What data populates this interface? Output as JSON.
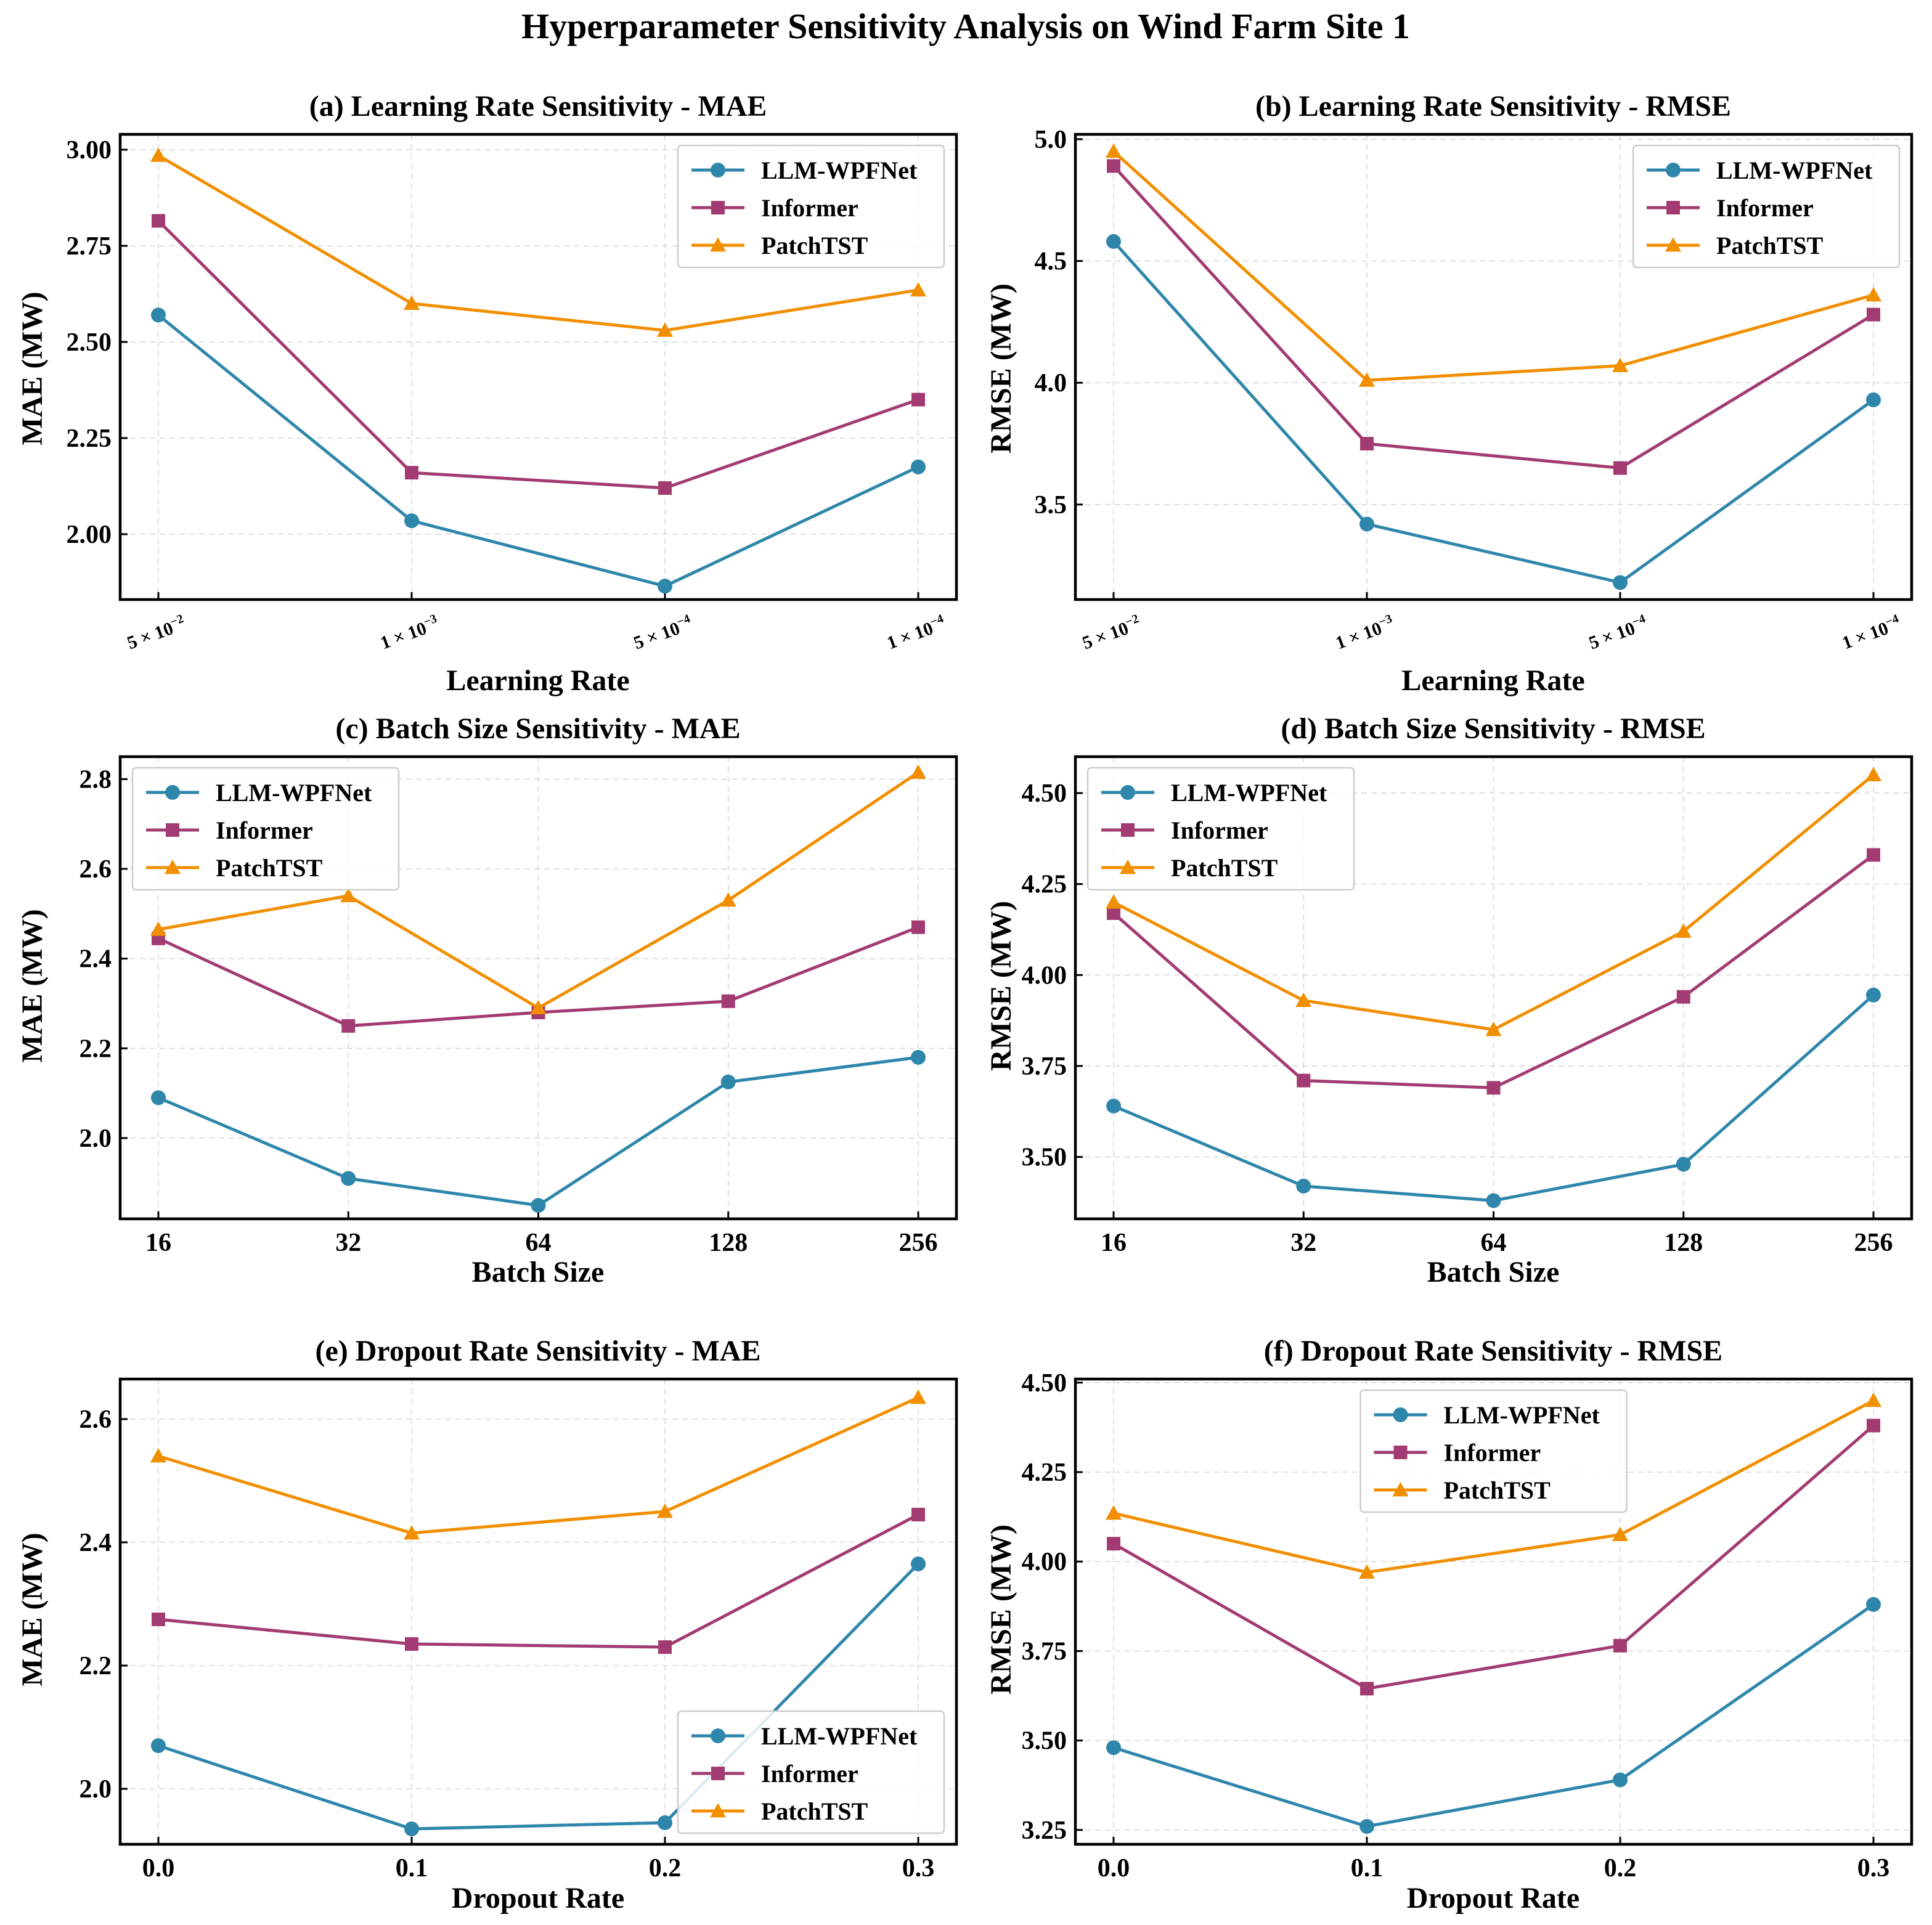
{
  "figure_title": "Hyperparameter Sensitivity Analysis on Wind Farm Site 1",
  "colors": {
    "LLM-WPFNet": "#2E86AB",
    "Informer": "#A23B72",
    "PatchTST": "#F18F01"
  },
  "chart_data": [
    {
      "type": "line",
      "title": "(a) Learning Rate Sensitivity - MAE",
      "xlabel": "Learning Rate",
      "ylabel": "MAE (MW)",
      "x_tick_style": "sci",
      "categories": [
        {
          "mant": "5",
          "exp": "−2"
        },
        {
          "mant": "1",
          "exp": "−3"
        },
        {
          "mant": "5",
          "exp": "−4"
        },
        {
          "mant": "1",
          "exp": "−4"
        }
      ],
      "ylim": [
        1.83,
        3.04
      ],
      "yticks": [
        2.0,
        2.25,
        2.5,
        2.75,
        3.0
      ],
      "ytick_labels": [
        "2.00",
        "2.25",
        "2.50",
        "2.75",
        "3.00"
      ],
      "legend_loc": "upper right",
      "series": [
        {
          "name": "LLM-WPFNet",
          "marker": "circle",
          "values": [
            2.57,
            2.035,
            1.865,
            2.175
          ]
        },
        {
          "name": "Informer",
          "marker": "square",
          "values": [
            2.815,
            2.16,
            2.12,
            2.35
          ]
        },
        {
          "name": "PatchTST",
          "marker": "triangle",
          "values": [
            2.985,
            2.6,
            2.53,
            2.635
          ]
        }
      ]
    },
    {
      "type": "line",
      "title": "(b) Learning Rate Sensitivity - RMSE",
      "xlabel": "Learning Rate",
      "ylabel": "RMSE (MW)",
      "x_tick_style": "sci",
      "categories": [
        {
          "mant": "5",
          "exp": "−2"
        },
        {
          "mant": "1",
          "exp": "−3"
        },
        {
          "mant": "5",
          "exp": "−4"
        },
        {
          "mant": "1",
          "exp": "−4"
        }
      ],
      "ylim": [
        3.11,
        5.02
      ],
      "yticks": [
        3.5,
        4.0,
        4.5,
        5.0
      ],
      "ytick_labels": [
        "3.5",
        "4.0",
        "4.5",
        "5.0"
      ],
      "legend_loc": "upper right",
      "series": [
        {
          "name": "LLM-WPFNet",
          "marker": "circle",
          "values": [
            4.58,
            3.42,
            3.18,
            3.93
          ]
        },
        {
          "name": "Informer",
          "marker": "square",
          "values": [
            4.89,
            3.75,
            3.65,
            4.28
          ]
        },
        {
          "name": "PatchTST",
          "marker": "triangle",
          "values": [
            4.95,
            4.01,
            4.07,
            4.36
          ]
        }
      ]
    },
    {
      "type": "line",
      "title": "(c) Batch Size Sensitivity - MAE",
      "xlabel": "Batch Size",
      "ylabel": "MAE (MW)",
      "x_tick_style": "plain",
      "categories": [
        "16",
        "32",
        "64",
        "128",
        "256"
      ],
      "ylim": [
        1.82,
        2.85
      ],
      "yticks": [
        2.0,
        2.2,
        2.4,
        2.6,
        2.8
      ],
      "ytick_labels": [
        "2.0",
        "2.2",
        "2.4",
        "2.6",
        "2.8"
      ],
      "legend_loc": "upper left",
      "series": [
        {
          "name": "LLM-WPFNet",
          "marker": "circle",
          "values": [
            2.09,
            1.91,
            1.85,
            2.125,
            2.18
          ]
        },
        {
          "name": "Informer",
          "marker": "square",
          "values": [
            2.445,
            2.25,
            2.28,
            2.305,
            2.47
          ]
        },
        {
          "name": "PatchTST",
          "marker": "triangle",
          "values": [
            2.465,
            2.54,
            2.29,
            2.53,
            2.815
          ]
        }
      ]
    },
    {
      "type": "line",
      "title": "(d) Batch Size Sensitivity - RMSE",
      "xlabel": "Batch Size",
      "ylabel": "RMSE (MW)",
      "x_tick_style": "plain",
      "categories": [
        "16",
        "32",
        "64",
        "128",
        "256"
      ],
      "ylim": [
        3.33,
        4.6
      ],
      "yticks": [
        3.5,
        3.75,
        4.0,
        4.25,
        4.5
      ],
      "ytick_labels": [
        "3.50",
        "3.75",
        "4.00",
        "4.25",
        "4.50"
      ],
      "legend_loc": "upper left",
      "series": [
        {
          "name": "LLM-WPFNet",
          "marker": "circle",
          "values": [
            3.64,
            3.42,
            3.38,
            3.48,
            3.945
          ]
        },
        {
          "name": "Informer",
          "marker": "square",
          "values": [
            4.17,
            3.71,
            3.69,
            3.94,
            4.33
          ]
        },
        {
          "name": "PatchTST",
          "marker": "triangle",
          "values": [
            4.2,
            3.93,
            3.85,
            4.12,
            4.55
          ]
        }
      ]
    },
    {
      "type": "line",
      "title": "(e) Dropout Rate Sensitivity - MAE",
      "xlabel": "Dropout Rate",
      "ylabel": "MAE (MW)",
      "x_tick_style": "plain",
      "categories": [
        "0.0",
        "0.1",
        "0.2",
        "0.3"
      ],
      "ylim": [
        1.91,
        2.665
      ],
      "yticks": [
        2.0,
        2.2,
        2.4,
        2.6
      ],
      "ytick_labels": [
        "2.0",
        "2.2",
        "2.4",
        "2.6"
      ],
      "legend_loc": "lower right",
      "series": [
        {
          "name": "LLM-WPFNet",
          "marker": "circle",
          "values": [
            2.07,
            1.935,
            1.945,
            2.365
          ]
        },
        {
          "name": "Informer",
          "marker": "square",
          "values": [
            2.275,
            2.235,
            2.23,
            2.445
          ]
        },
        {
          "name": "PatchTST",
          "marker": "triangle",
          "values": [
            2.54,
            2.415,
            2.45,
            2.635
          ]
        }
      ]
    },
    {
      "type": "line",
      "title": "(f) Dropout Rate Sensitivity - RMSE",
      "xlabel": "Dropout Rate",
      "ylabel": "RMSE (MW)",
      "x_tick_style": "plain",
      "categories": [
        "0.0",
        "0.1",
        "0.2",
        "0.3"
      ],
      "ylim": [
        3.21,
        4.51
      ],
      "yticks": [
        3.25,
        3.5,
        3.75,
        4.0,
        4.25,
        4.5
      ],
      "ytick_labels": [
        "3.25",
        "3.50",
        "3.75",
        "4.00",
        "4.25",
        "4.50"
      ],
      "legend_loc": "upper center",
      "series": [
        {
          "name": "LLM-WPFNet",
          "marker": "circle",
          "values": [
            3.48,
            3.26,
            3.39,
            3.88
          ]
        },
        {
          "name": "Informer",
          "marker": "square",
          "values": [
            4.05,
            3.645,
            3.765,
            4.38
          ]
        },
        {
          "name": "PatchTST",
          "marker": "triangle",
          "values": [
            4.135,
            3.97,
            4.075,
            4.45
          ]
        }
      ]
    }
  ]
}
